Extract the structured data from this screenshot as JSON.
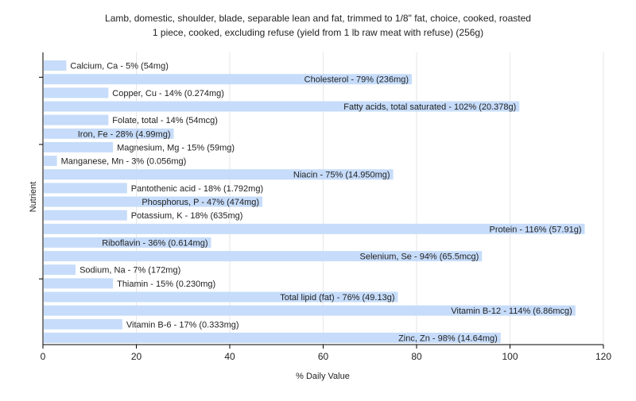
{
  "chart_data": {
    "type": "bar",
    "orientation": "horizontal",
    "title": "Lamb, domestic, shoulder, blade, separable lean and fat, trimmed to 1/8\" fat, choice, cooked, roasted",
    "subtitle": "1 piece, cooked, excluding refuse (yield from 1 lb raw meat with refuse) (256g)",
    "xlabel": "% Daily Value",
    "ylabel": "Nutrient",
    "xlim": [
      0,
      120
    ],
    "xticks": [
      0,
      20,
      40,
      60,
      80,
      100,
      120
    ],
    "grid": true,
    "bar_color": "#c6dcfa",
    "categories": [
      "Calcium, Ca",
      "Cholesterol",
      "Copper, Cu",
      "Fatty acids, total saturated",
      "Folate, total",
      "Iron, Fe",
      "Magnesium, Mg",
      "Manganese, Mn",
      "Niacin",
      "Pantothenic acid",
      "Phosphorus, P",
      "Potassium, K",
      "Protein",
      "Riboflavin",
      "Selenium, Se",
      "Sodium, Na",
      "Thiamin",
      "Total lipid (fat)",
      "Vitamin B-12",
      "Vitamin B-6",
      "Zinc, Zn"
    ],
    "values": [
      5,
      79,
      14,
      102,
      14,
      28,
      15,
      3,
      75,
      18,
      47,
      18,
      116,
      36,
      94,
      7,
      15,
      76,
      114,
      17,
      98
    ],
    "labels": [
      "Calcium, Ca - 5% (54mg)",
      "Cholesterol - 79% (236mg)",
      "Copper, Cu - 14% (0.274mg)",
      "Fatty acids, total saturated - 102% (20.378g)",
      "Folate, total - 14% (54mcg)",
      "Iron, Fe - 28% (4.99mg)",
      "Magnesium, Mg - 15% (59mg)",
      "Manganese, Mn - 3% (0.056mg)",
      "Niacin - 75% (14.950mg)",
      "Pantothenic acid - 18% (1.792mg)",
      "Phosphorus, P - 47% (474mg)",
      "Potassium, K - 18% (635mg)",
      "Protein - 116% (57.91g)",
      "Riboflavin - 36% (0.614mg)",
      "Selenium, Se - 94% (65.5mcg)",
      "Sodium, Na - 7% (172mg)",
      "Thiamin - 15% (0.230mg)",
      "Total lipid (fat) - 76% (49.13g)",
      "Vitamin B-12 - 114% (6.86mcg)",
      "Vitamin B-6 - 17% (0.333mg)",
      "Zinc, Zn - 98% (14.64mg)"
    ]
  }
}
